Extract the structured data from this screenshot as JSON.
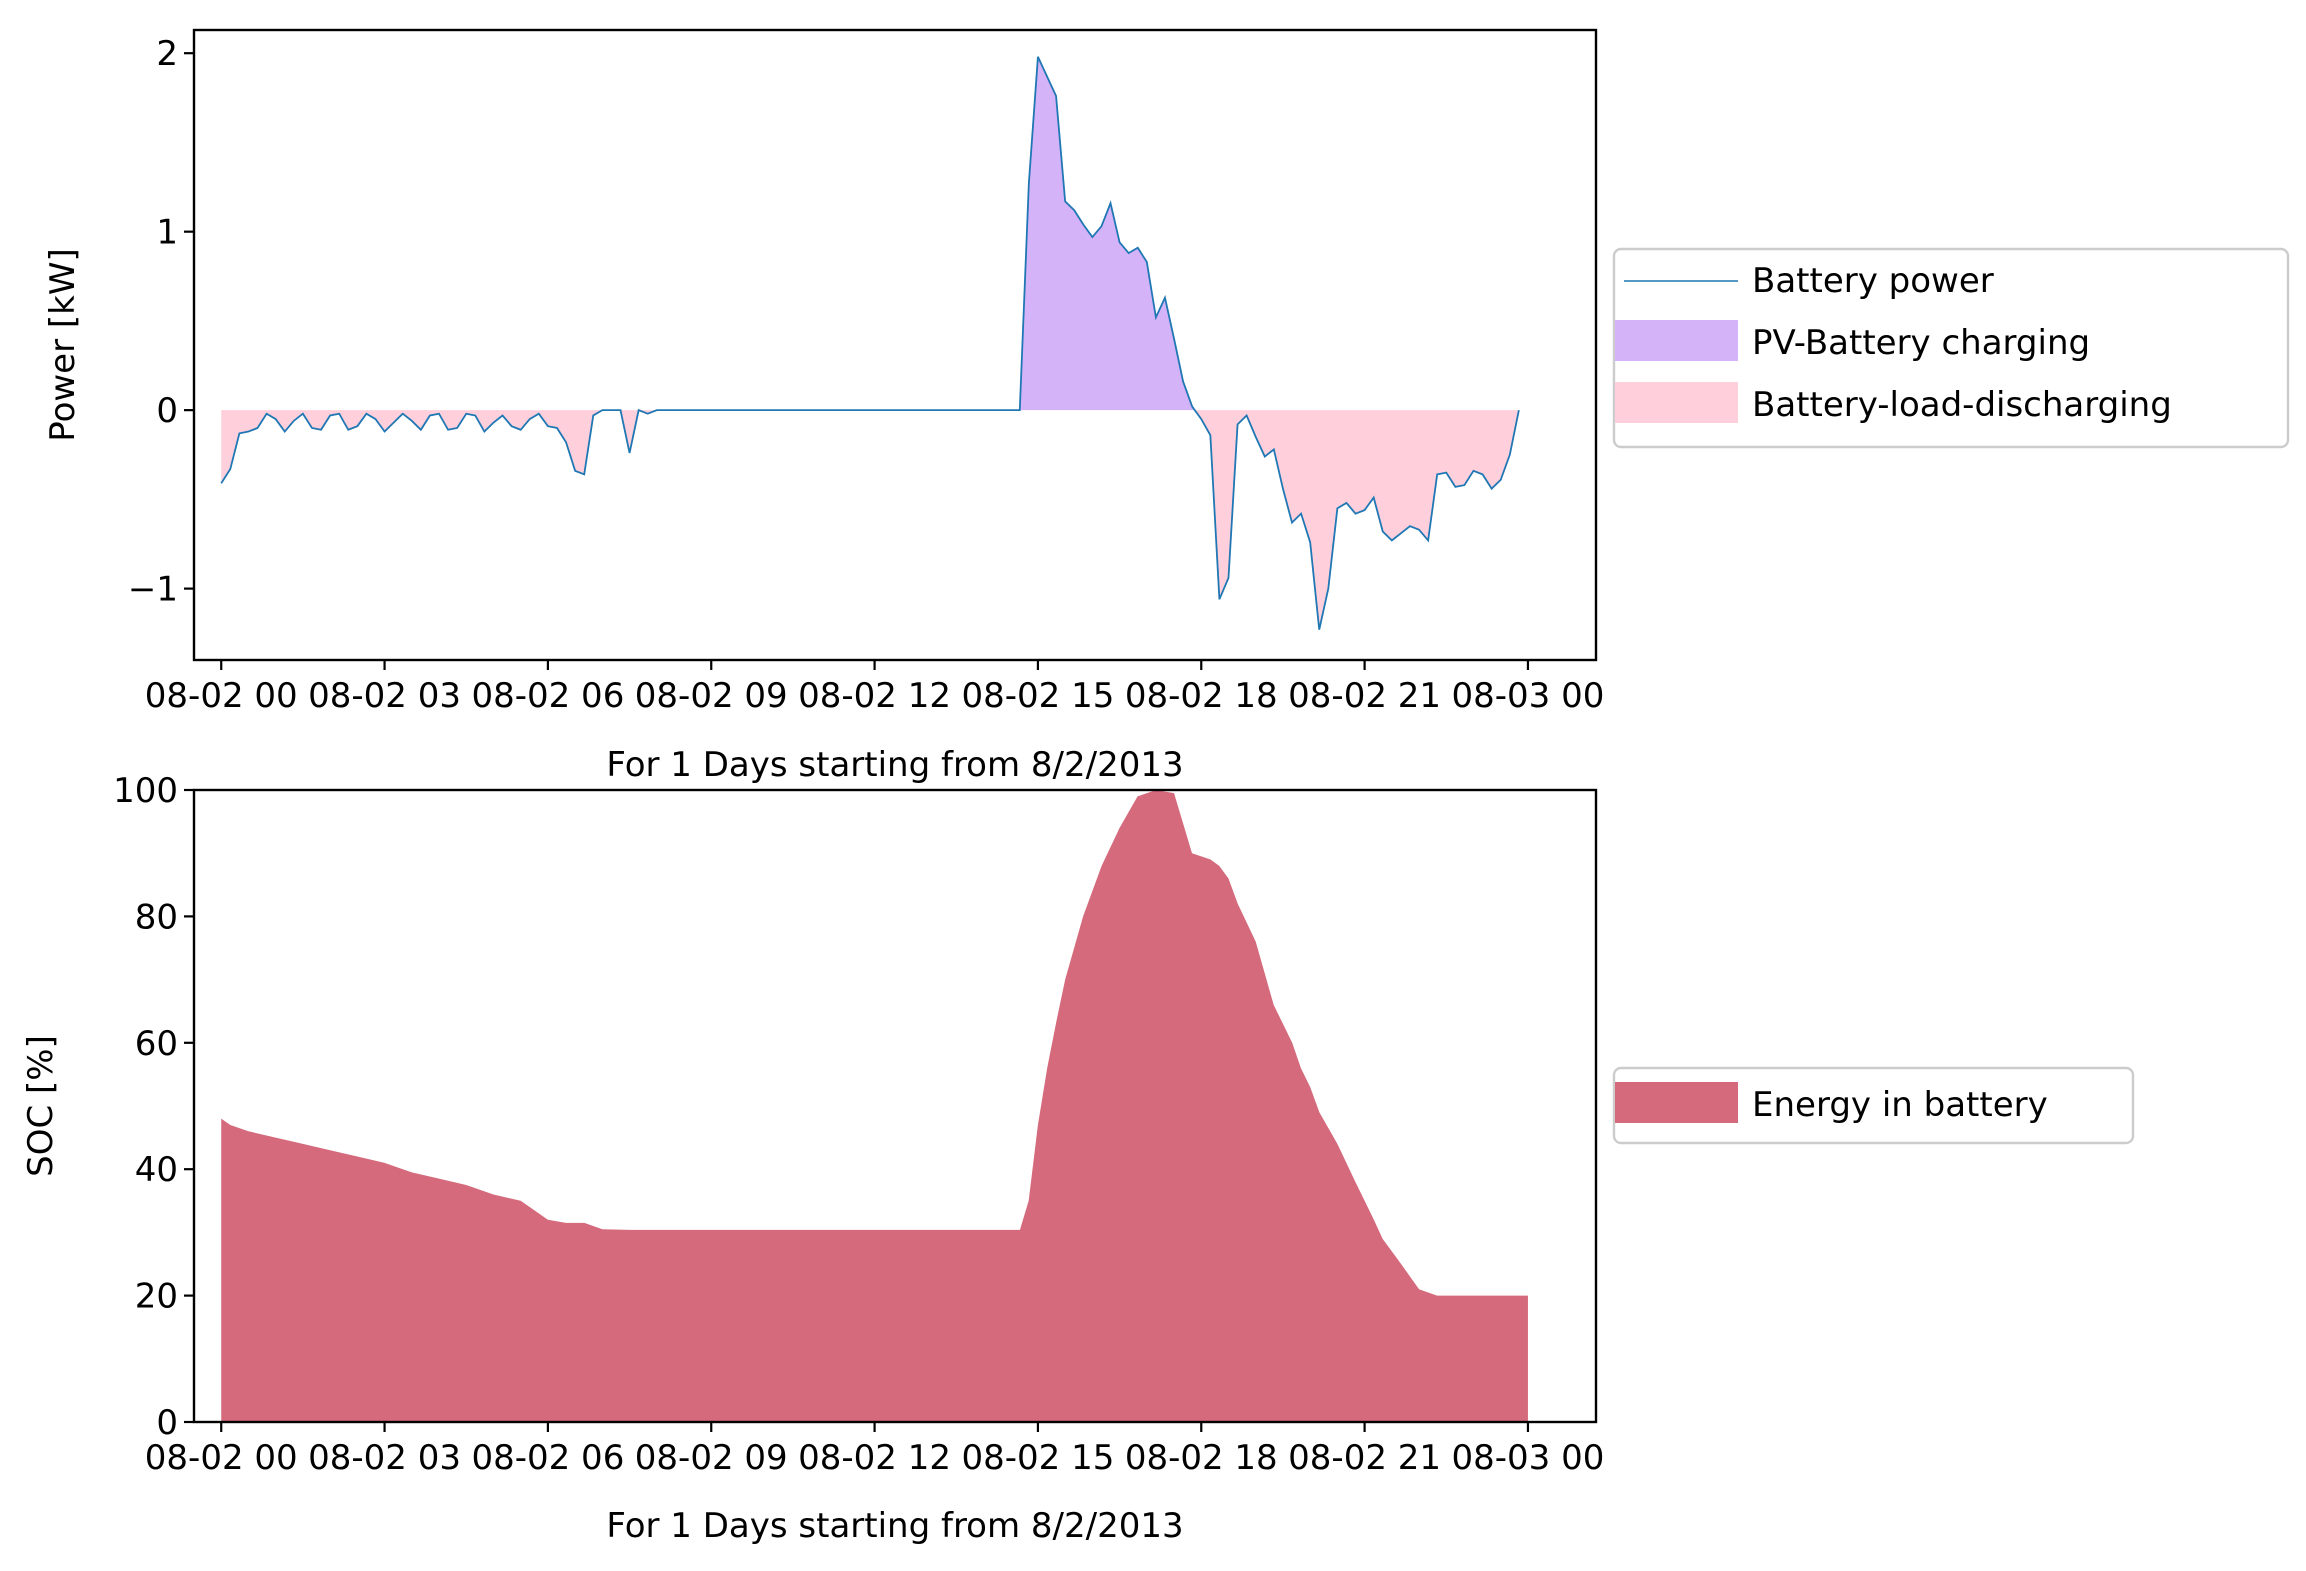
{
  "chart_data": [
    {
      "type": "area",
      "xlabel": "For 1 Days starting from 8/2/2013",
      "ylabel": "Power [kW]",
      "ylim": [
        -1.4,
        2.13
      ],
      "xlim": [
        -0.5,
        25.25
      ],
      "grid": false,
      "legend_position": "right, outside the axes",
      "xticks": [
        {
          "x": 0,
          "label": "08-02 00"
        },
        {
          "x": 3,
          "label": "08-02 03"
        },
        {
          "x": 6,
          "label": "08-02 06"
        },
        {
          "x": 9,
          "label": "08-02 09"
        },
        {
          "x": 12,
          "label": "08-02 12"
        },
        {
          "x": 15,
          "label": "08-02 15"
        },
        {
          "x": 18,
          "label": "08-02 18"
        },
        {
          "x": 21,
          "label": "08-02 21"
        },
        {
          "x": 24,
          "label": "08-03 00"
        }
      ],
      "yticks": [
        {
          "y": 2,
          "label": "2"
        },
        {
          "y": 1,
          "label": "1"
        },
        {
          "y": 0,
          "label": "0"
        },
        {
          "y": -1,
          "label": "−1"
        }
      ],
      "series": [
        {
          "name": "Battery power",
          "kind": "line",
          "color": "#1f77b4"
        },
        {
          "name": "PV-Battery charging",
          "kind": "fill_positive",
          "color": "#d5b3f8"
        },
        {
          "name": "Battery-load-discharging",
          "kind": "fill_negative",
          "color": "#ffd0dc"
        }
      ],
      "x_hours": [
        0,
        0.1667,
        0.3333,
        0.5,
        0.6667,
        0.8333,
        1,
        1.1667,
        1.3333,
        1.5,
        1.6667,
        1.8333,
        2,
        2.1667,
        2.3333,
        2.5,
        2.6667,
        2.8333,
        3,
        3.1667,
        3.3333,
        3.5,
        3.6667,
        3.8333,
        4,
        4.1667,
        4.3333,
        4.5,
        4.6667,
        4.8333,
        5,
        5.1667,
        5.3333,
        5.5,
        5.6667,
        5.8333,
        6,
        6.1667,
        6.3333,
        6.5,
        6.6667,
        6.8333,
        7,
        7.1667,
        7.3333,
        7.5,
        7.6667,
        7.8333,
        8,
        8.1667,
        8.3333,
        8.5,
        8.6667,
        14.6667,
        14.8333,
        15,
        15.1667,
        15.3333,
        15.5,
        15.6667,
        15.8333,
        16,
        16.1667,
        16.3333,
        16.5,
        16.6667,
        16.8333,
        17,
        17.1667,
        17.3333,
        17.5,
        17.6667,
        17.8333,
        18,
        18.1667,
        18.3333,
        18.5,
        18.6667,
        18.8333,
        19,
        19.1667,
        19.3333,
        19.5,
        19.6667,
        19.8333,
        20,
        20.1667,
        20.3333,
        20.5,
        20.6667,
        20.8333,
        21,
        21.1667,
        21.3333,
        21.5,
        21.6667,
        21.8333,
        22,
        22.1667,
        22.3333,
        22.5,
        22.6667,
        22.8333,
        23,
        23.1667,
        23.3333,
        23.5,
        23.6667,
        23.8333,
        24
      ],
      "power_kw": [
        -0.41,
        -0.33,
        -0.13,
        -0.12,
        -0.1,
        -0.02,
        -0.05,
        -0.12,
        -0.06,
        -0.02,
        -0.1,
        -0.11,
        -0.03,
        -0.02,
        -0.11,
        -0.09,
        -0.02,
        -0.05,
        -0.12,
        -0.07,
        -0.02,
        -0.06,
        -0.11,
        -0.03,
        -0.02,
        -0.11,
        -0.1,
        -0.02,
        -0.03,
        -0.12,
        -0.07,
        -0.03,
        -0.09,
        -0.11,
        -0.05,
        -0.02,
        -0.09,
        -0.1,
        -0.18,
        -0.34,
        -0.36,
        -0.03,
        0,
        0,
        0,
        -0.24,
        0,
        -0.02,
        0,
        0,
        0,
        0,
        0,
        0,
        1.27,
        1.98,
        1.87,
        1.76,
        1.17,
        1.12,
        1.04,
        0.97,
        1.03,
        1.16,
        0.94,
        0.88,
        0.91,
        0.83,
        0.52,
        0.63,
        0.4,
        0.16,
        0.02,
        -0.05,
        -0.14,
        -1.06,
        -0.94,
        -0.08,
        -0.03,
        -0.15,
        -0.26,
        -0.22,
        -0.44,
        -0.63,
        -0.58,
        -0.74,
        -1.23,
        -1.0,
        -0.55,
        -0.52,
        -0.58,
        -0.56,
        -0.49,
        -0.68,
        -0.73,
        -0.69,
        -0.65,
        -0.67,
        -0.73,
        -0.36,
        -0.35,
        -0.43,
        -0.42,
        -0.34,
        -0.36,
        -0.44,
        -0.39,
        -0.25,
        0
      ]
    },
    {
      "type": "area",
      "xlabel": "For 1 Days starting from 8/2/2013",
      "ylabel": "SOC [%]",
      "ylim": [
        0,
        100
      ],
      "xlim": [
        -0.5,
        25.25
      ],
      "grid": false,
      "legend_position": "right, outside the axes",
      "xticks": [
        {
          "x": 0,
          "label": "08-02 00"
        },
        {
          "x": 3,
          "label": "08-02 03"
        },
        {
          "x": 6,
          "label": "08-02 06"
        },
        {
          "x": 9,
          "label": "08-02 09"
        },
        {
          "x": 12,
          "label": "08-02 12"
        },
        {
          "x": 15,
          "label": "08-02 15"
        },
        {
          "x": 18,
          "label": "08-02 18"
        },
        {
          "x": 21,
          "label": "08-02 21"
        },
        {
          "x": 24,
          "label": "08-03 00"
        }
      ],
      "yticks": [
        {
          "y": 100,
          "label": "100"
        },
        {
          "y": 80,
          "label": "80"
        },
        {
          "y": 60,
          "label": "60"
        },
        {
          "y": 40,
          "label": "40"
        },
        {
          "y": 20,
          "label": "20"
        },
        {
          "y": 0,
          "label": "0"
        }
      ],
      "series": [
        {
          "name": "Energy in battery",
          "kind": "fill",
          "color": "#d46a7c"
        }
      ],
      "x_hours": [
        0,
        0.1667,
        0.5,
        1,
        1.5,
        2,
        2.5,
        3,
        3.5,
        4,
        4.5,
        5,
        5.5,
        6,
        6.33,
        6.67,
        7,
        7.5,
        8,
        8.5,
        14.67,
        14.83,
        15,
        15.17,
        15.33,
        15.5,
        15.83,
        16.17,
        16.5,
        16.83,
        17.17,
        17.5,
        17.83,
        18,
        18.17,
        18.33,
        18.5,
        18.67,
        19,
        19.33,
        19.67,
        19.83,
        20,
        20.17,
        20.5,
        20.83,
        21,
        21.17,
        21.33,
        21.67,
        22,
        22.33,
        22.67,
        23,
        23.33,
        23.67,
        23.83,
        24
      ],
      "soc_percent": [
        48,
        47,
        46,
        45,
        44,
        43,
        42,
        41,
        39.5,
        38.5,
        37.5,
        36,
        35,
        32,
        31.5,
        31.5,
        30.5,
        30.4,
        30.4,
        30.4,
        30.4,
        35,
        47,
        56,
        63,
        70,
        80,
        88,
        94,
        99,
        100,
        99.5,
        90,
        89.5,
        89,
        88,
        86,
        82,
        76,
        66,
        60,
        56,
        53,
        49,
        44,
        38,
        35,
        32,
        29,
        25,
        21,
        20,
        20,
        20,
        20,
        20,
        20,
        20
      ]
    }
  ]
}
